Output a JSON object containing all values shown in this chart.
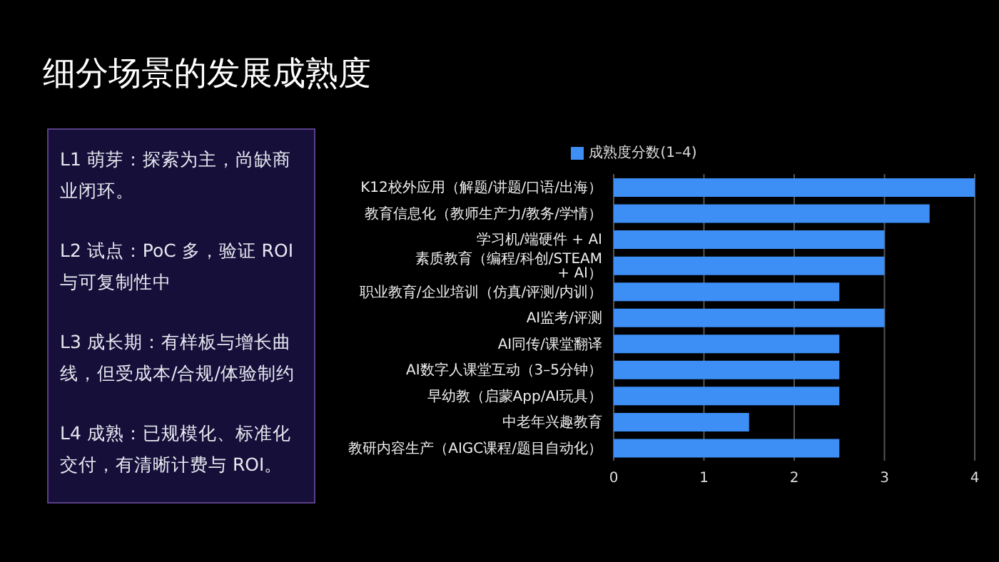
{
  "chart_data": {
    "type": "bar",
    "orientation": "horizontal",
    "title": "细分场景的发展成熟度",
    "categories": [
      "K12校外应用（解题/讲题/口语/出海）",
      "教育信息化（教师生产力/教务/学情）",
      "学习机/端硬件 + AI",
      "素质教育（编程/科创/STEAM + AI）",
      "职业教育/企业培训（仿真/评测/内训）",
      "AI监考/评测",
      "AI同传/课堂翻译",
      "AI数字人课堂互动（3–5分钟）",
      "早幼教（启蒙App/AI玩具）",
      "中老年兴趣教育",
      "教研内容生产（AIGC课程/题目自动化）"
    ],
    "series": [
      {
        "name": "成熟度分数(1–4)",
        "color": "#3d8ef5",
        "values": [
          4,
          3.5,
          3,
          3,
          2.5,
          3,
          2.5,
          2.5,
          2.5,
          1.5,
          2.5
        ]
      }
    ],
    "xlim": [
      0,
      4
    ],
    "xticks": [
      0,
      1,
      2,
      3,
      4
    ],
    "grid": "x",
    "legend": "top",
    "annotations": [
      "L1 萌芽：探索为主，尚缺商业闭环。",
      "L2 试点：PoC 多，验证 ROI 与可复制性中",
      "L3 成长期：有样板与增长曲线，但受成本/合规/体验制约",
      "L4 成熟：已规模化、标准化交付，有清晰计费与 ROI。"
    ]
  }
}
